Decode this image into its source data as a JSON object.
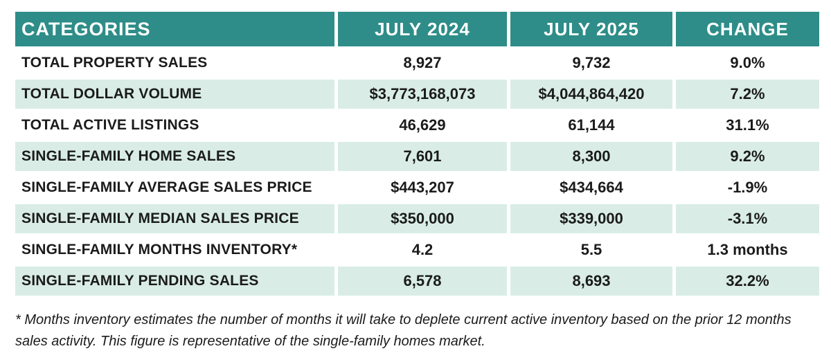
{
  "chart_data": {
    "type": "table",
    "columns": [
      "CATEGORIES",
      "JULY 2024",
      "JULY 2025",
      "CHANGE"
    ],
    "rows": [
      {
        "category": "TOTAL PROPERTY SALES",
        "july_2024": "8,927",
        "july_2025": "9,732",
        "change": "9.0%"
      },
      {
        "category": "TOTAL DOLLAR VOLUME",
        "july_2024": "$3,773,168,073",
        "july_2025": "$4,044,864,420",
        "change": "7.2%"
      },
      {
        "category": "TOTAL ACTIVE LISTINGS",
        "july_2024": "46,629",
        "july_2025": "61,144",
        "change": "31.1%"
      },
      {
        "category": "SINGLE-FAMILY HOME SALES",
        "july_2024": "7,601",
        "july_2025": "8,300",
        "change": "9.2%"
      },
      {
        "category": "SINGLE-FAMILY AVERAGE SALES PRICE",
        "july_2024": "$443,207",
        "july_2025": "$434,664",
        "change": "-1.9%"
      },
      {
        "category": "SINGLE-FAMILY MEDIAN SALES PRICE",
        "july_2024": "$350,000",
        "july_2025": "$339,000",
        "change": "-3.1%"
      },
      {
        "category": "SINGLE-FAMILY MONTHS INVENTORY*",
        "july_2024": "4.2",
        "july_2025": "5.5",
        "change": "1.3 months"
      },
      {
        "category": "SINGLE-FAMILY PENDING SALES",
        "july_2024": "6,578",
        "july_2025": "8,693",
        "change": "32.2%"
      }
    ],
    "legend_position": "none",
    "grid": false
  },
  "footnote": "* Months inventory estimates the number of months it will take to deplete current active inventory based on the prior 12 months sales activity. This figure is representative of the single-family homes market.",
  "colors": {
    "header_bg": "#2E8D88",
    "row_alt_bg": "#D9EDE6",
    "header_text": "#FFFFFF",
    "body_text": "#1B1B1B",
    "gap": "#FFFFFF"
  }
}
